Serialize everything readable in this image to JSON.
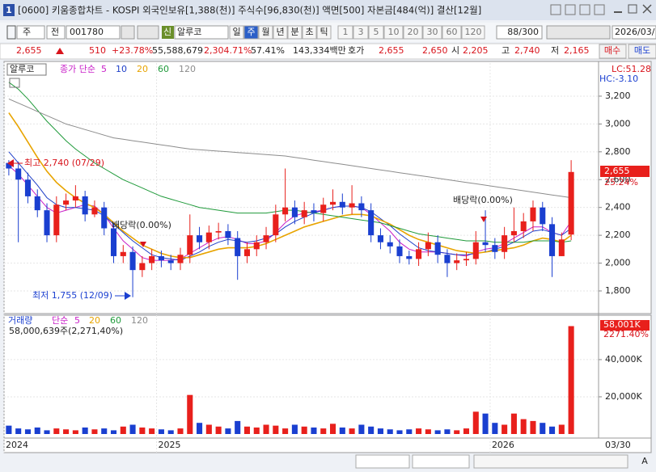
{
  "window": {
    "icon": "1",
    "title": "[0600] 키움종합차트 - KOSPI 외국인보유[1,388(천)] 주식수[96,830(천)] 액면[500] 자본금[484(억)] 결산[12월]"
  },
  "toolbar": {
    "period": "주",
    "scope": "전",
    "code": "001780",
    "credit": "신",
    "name": "알루코",
    "intervals": [
      "일",
      "주",
      "월",
      "년",
      "분",
      "초",
      "틱"
    ],
    "minutes": [
      "1",
      "3",
      "5",
      "10",
      "20",
      "30",
      "60",
      "120"
    ],
    "count": "88/300",
    "date": "2026/03/"
  },
  "quote": {
    "price": "2,655",
    "change": "510",
    "change_pct": "+23.78%",
    "volume": "55,588,679",
    "volume_pct": "2,304.71%",
    "turnover": "57.41%",
    "amount": "143,334백만",
    "ask_label": "호가",
    "ask": "2,655",
    "bid": "2,650",
    "open_label": "시",
    "open": "2,205",
    "high_label": "고",
    "high": "2,740",
    "low_label": "저",
    "low": "2,165"
  },
  "side_buttons": [
    "매수",
    "매도"
  ],
  "chart_data": [
    {
      "type": "candlestick",
      "name": "알루코",
      "legend_title": "종가 단순",
      "indicators": [
        "LC:51.28",
        "HC:-3.10"
      ],
      "annotations": {
        "high": "최고 2,740 (07/29)",
        "low": "최저 1,755 (12/09)",
        "dividend": [
          "배당락(0.00%)",
          "배당락(0.00%)"
        ]
      },
      "last_label": "2,655",
      "last_change": "25.24%",
      "up_color": "#e8201c",
      "down_color": "#1a3fd0",
      "categories": [
        "2024",
        null,
        null,
        null,
        null,
        null,
        null,
        null,
        null,
        null,
        null,
        null,
        null,
        null,
        null,
        null,
        "2025",
        null,
        null,
        null,
        null,
        null,
        null,
        null,
        null,
        null,
        null,
        null,
        null,
        null,
        null,
        null,
        null,
        null,
        null,
        null,
        null,
        null,
        null,
        null,
        null,
        null,
        null,
        null,
        null,
        null,
        null,
        null,
        null,
        null,
        null,
        "2026",
        null,
        null,
        null,
        null,
        null,
        null,
        null,
        null
      ],
      "axis_end": "03/30",
      "ylim": [
        1643,
        3438
      ],
      "yticks": [
        {
          "value": 1800,
          "label": "1,800"
        },
        {
          "value": 2000,
          "label": "2,000"
        },
        {
          "value": 2200,
          "label": "2,200"
        },
        {
          "value": 2400,
          "label": "2,400"
        },
        {
          "value": 2600,
          "label": "2,600"
        },
        {
          "value": 2800,
          "label": "2,800"
        },
        {
          "value": 3000,
          "label": "3,000"
        },
        {
          "value": 3200,
          "label": "3,200"
        }
      ],
      "open": [
        2720,
        2680,
        2600,
        2480,
        2380,
        2200,
        2420,
        2450,
        2480,
        2350,
        2400,
        2250,
        2050,
        2080,
        1950,
        2000,
        2050,
        2020,
        2000,
        2060,
        2200,
        2150,
        2220,
        2230,
        2180,
        2050,
        2100,
        2150,
        2200,
        2350,
        2400,
        2330,
        2380,
        2360,
        2420,
        2440,
        2400,
        2430,
        2380,
        2200,
        2150,
        2120,
        2050,
        2030,
        2100,
        2150,
        2060,
        2000,
        2020,
        2030,
        2150,
        2130,
        2080,
        2200,
        2230,
        2300,
        2400,
        2280,
        2050,
        2205
      ],
      "high": [
        2740,
        2730,
        2650,
        2530,
        2430,
        2480,
        2500,
        2560,
        2520,
        2450,
        2440,
        2290,
        2130,
        2120,
        2050,
        2100,
        2090,
        2060,
        2110,
        2350,
        2260,
        2270,
        2290,
        2280,
        2230,
        2150,
        2200,
        2260,
        2420,
        2680,
        2450,
        2440,
        2430,
        2470,
        2530,
        2500,
        2560,
        2480,
        2430,
        2250,
        2200,
        2170,
        2090,
        2150,
        2220,
        2200,
        2100,
        2070,
        2080,
        2230,
        2380,
        2180,
        2260,
        2400,
        2360,
        2450,
        2440,
        2330,
        2220,
        2740
      ],
      "low": [
        2630,
        2150,
        2430,
        2330,
        2150,
        2150,
        2380,
        2400,
        2300,
        2330,
        2200,
        2000,
        2000,
        1755,
        1900,
        1950,
        1970,
        1950,
        1950,
        2000,
        2100,
        2100,
        2170,
        2130,
        1880,
        2000,
        2050,
        2100,
        2150,
        2300,
        2280,
        2280,
        2300,
        2300,
        2380,
        2350,
        2350,
        2330,
        2150,
        2100,
        2070,
        2000,
        1990,
        1980,
        2050,
        2000,
        1900,
        1950,
        1980,
        1990,
        2080,
        2030,
        2030,
        2150,
        2180,
        2230,
        2230,
        1900,
        2050,
        2165
      ],
      "close": [
        2680,
        2600,
        2480,
        2380,
        2200,
        2420,
        2450,
        2480,
        2350,
        2400,
        2250,
        2050,
        2080,
        1950,
        2000,
        2050,
        2020,
        2000,
        2060,
        2200,
        2150,
        2220,
        2230,
        2180,
        2050,
        2100,
        2150,
        2200,
        2350,
        2400,
        2330,
        2380,
        2360,
        2420,
        2440,
        2400,
        2430,
        2380,
        2200,
        2150,
        2120,
        2050,
        2030,
        2100,
        2150,
        2060,
        2000,
        2020,
        2030,
        2150,
        2130,
        2080,
        2200,
        2230,
        2300,
        2400,
        2280,
        2050,
        2170,
        2655
      ],
      "series": [
        {
          "name": "5",
          "color": "#c81fc8",
          "values": [
            2700,
            2640,
            2560,
            2480,
            2400,
            2360,
            2380,
            2400,
            2420,
            2410,
            2350,
            2250,
            2160,
            2100,
            2040,
            2020,
            2020,
            2020,
            2030,
            2070,
            2110,
            2150,
            2180,
            2190,
            2170,
            2140,
            2140,
            2160,
            2220,
            2290,
            2340,
            2360,
            2370,
            2380,
            2400,
            2410,
            2410,
            2400,
            2350,
            2290,
            2230,
            2150,
            2100,
            2080,
            2080,
            2080,
            2070,
            2060,
            2050,
            2080,
            2100,
            2110,
            2140,
            2180,
            2220,
            2260,
            2260,
            2220,
            2200,
            2300
          ]
        },
        {
          "name": "10",
          "color": "#1f3fc8",
          "values": [
            2800,
            2720,
            2640,
            2560,
            2470,
            2420,
            2400,
            2400,
            2390,
            2380,
            2340,
            2280,
            2220,
            2160,
            2110,
            2060,
            2040,
            2030,
            2020,
            2050,
            2080,
            2120,
            2150,
            2170,
            2160,
            2150,
            2160,
            2180,
            2210,
            2260,
            2300,
            2330,
            2360,
            2380,
            2400,
            2410,
            2410,
            2400,
            2370,
            2320,
            2270,
            2210,
            2160,
            2110,
            2090,
            2080,
            2070,
            2060,
            2060,
            2070,
            2080,
            2100,
            2120,
            2150,
            2190,
            2230,
            2240,
            2220,
            2200,
            2250
          ]
        },
        {
          "name": "20",
          "color": "#e8a400",
          "values": [
            3080,
            2980,
            2870,
            2760,
            2660,
            2580,
            2520,
            2470,
            2430,
            2400,
            2350,
            2290,
            2230,
            2180,
            2130,
            2100,
            2070,
            2050,
            2040,
            2040,
            2060,
            2080,
            2100,
            2110,
            2110,
            2110,
            2120,
            2140,
            2170,
            2200,
            2230,
            2260,
            2280,
            2300,
            2320,
            2340,
            2350,
            2350,
            2340,
            2310,
            2280,
            2240,
            2200,
            2170,
            2150,
            2130,
            2110,
            2090,
            2080,
            2070,
            2080,
            2090,
            2100,
            2110,
            2130,
            2160,
            2180,
            2170,
            2150,
            2200
          ]
        },
        {
          "name": "60",
          "color": "#1f9a3a",
          "values": [
            3300,
            3250,
            3180,
            3100,
            3020,
            2950,
            2880,
            2820,
            2770,
            2720,
            2680,
            2640,
            2600,
            2570,
            2540,
            2510,
            2480,
            2460,
            2440,
            2420,
            2400,
            2390,
            2380,
            2370,
            2360,
            2360,
            2360,
            2360,
            2370,
            2380,
            2380,
            2370,
            2360,
            2350,
            2340,
            2330,
            2320,
            2310,
            2300,
            2290,
            2270,
            2250,
            2230,
            2210,
            2200,
            2190,
            2180,
            2170,
            2160,
            2160,
            2160,
            2150,
            2150,
            2150,
            2150,
            2160,
            2160,
            2160,
            2150,
            2160
          ]
        },
        {
          "name": "120",
          "color": "#8c8c8c",
          "values": [
            3180,
            3150,
            3120,
            3090,
            3060,
            3030,
            3000,
            2980,
            2960,
            2940,
            2920,
            2900,
            2890,
            2880,
            2870,
            2860,
            2850,
            2840,
            2830,
            2820,
            2815,
            2810,
            2805,
            2800,
            2795,
            2790,
            2785,
            2780,
            2775,
            2770,
            2760,
            2750,
            2740,
            2730,
            2720,
            2710,
            2700,
            2690,
            2680,
            2670,
            2660,
            2650,
            2640,
            2630,
            2620,
            2610,
            2600,
            2590,
            2580,
            2570,
            2560,
            2550,
            2540,
            2530,
            2520,
            2510,
            2500,
            2490,
            2480,
            2470
          ]
        }
      ]
    },
    {
      "type": "bar",
      "title": "거래량",
      "legend_title": "단순",
      "ma_legend": [
        {
          "name": "5",
          "color": "#c81fc8"
        },
        {
          "name": "20",
          "color": "#e8a400"
        },
        {
          "name": "60",
          "color": "#1f9a3a"
        },
        {
          "name": "120",
          "color": "#8c8c8c"
        }
      ],
      "summary": "58,000,639주(2,271,40%)",
      "last_label": "58,001K",
      "last_pct": "2271.40%",
      "ylim": [
        0,
        63000
      ],
      "yticks": [
        {
          "value": 20000,
          "label": "20,000K"
        },
        {
          "value": 40000,
          "label": "40,000K"
        }
      ],
      "values": [
        4500,
        3000,
        2500,
        3500,
        2000,
        3000,
        2500,
        2000,
        3500,
        2500,
        3000,
        2000,
        4000,
        5000,
        3500,
        3000,
        2500,
        2000,
        3000,
        21000,
        6000,
        5000,
        4000,
        3000,
        7000,
        4000,
        3500,
        5000,
        4500,
        3000,
        5000,
        4000,
        3500,
        3000,
        5500,
        3500,
        3000,
        5000,
        4000,
        3000,
        2500,
        2000,
        2500,
        3000,
        2500,
        2000,
        2500,
        2000,
        3000,
        12000,
        11000,
        6000,
        5000,
        11000,
        8000,
        7000,
        6000,
        4000,
        5000,
        58001
      ]
    }
  ],
  "footer": {
    "font_button": "A"
  }
}
